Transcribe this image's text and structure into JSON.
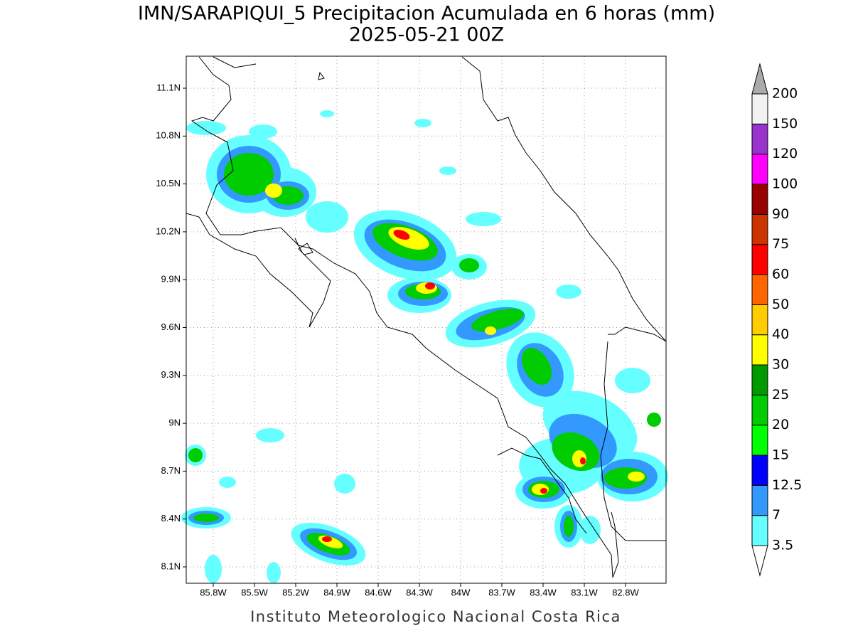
{
  "header": {
    "title": "IMN/SARAPIQUI_5 Precipitacion Acumulada en 6 horas (mm)",
    "subtitle": "2025-05-21 00Z"
  },
  "map": {
    "lon_ticks": [
      "85.8W",
      "85.5W",
      "85.2W",
      "84.9W",
      "84.6W",
      "84.3W",
      "84W",
      "83.7W",
      "83.4W",
      "83.1W",
      "82.8W"
    ],
    "lat_ticks": [
      "11.1N",
      "10.8N",
      "10.5N",
      "10.2N",
      "9.9N",
      "9.6N",
      "9.3N",
      "9N",
      "8.7N",
      "8.4N",
      "8.1N"
    ]
  },
  "colorbar": {
    "levels": [
      3.5,
      7,
      12.5,
      15,
      20,
      25,
      30,
      40,
      50,
      60,
      75,
      90,
      100,
      120,
      150,
      200
    ],
    "colors": [
      "#66ffff",
      "#3399ff",
      "#0000ff",
      "#00ff00",
      "#00cc00",
      "#009900",
      "#ffff00",
      "#ffcc00",
      "#ff6600",
      "#ff0000",
      "#cc3300",
      "#990000",
      "#ff00ff",
      "#9933cc",
      "#f2f2f2"
    ],
    "over_color": "#aaaaaa",
    "under_color": "#ffffff"
  },
  "footer": "Instituto Meteorologico Nacional Costa Rica"
}
